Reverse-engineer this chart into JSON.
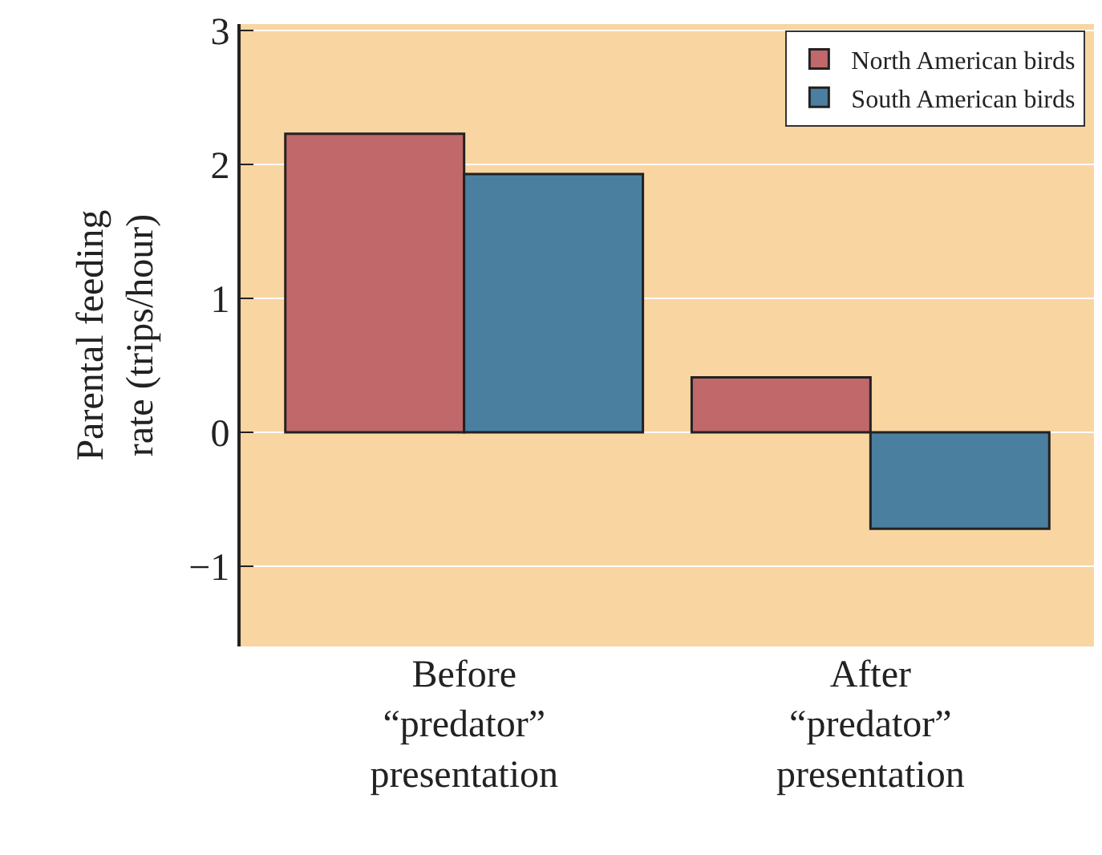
{
  "chart_data": {
    "type": "bar",
    "ylabel": "Parental feeding\nrate (trips/hour)",
    "categories": [
      "Before\n“predator”\npresentation",
      "After\n“predator”\npresentation"
    ],
    "series": [
      {
        "name": "North American birds",
        "color": "#c0686a",
        "values": [
          2.23,
          0.41
        ]
      },
      {
        "name": "South American birds",
        "color": "#4b7fa0",
        "values": [
          1.93,
          -0.72
        ]
      }
    ],
    "ylim": [
      -1.6,
      3.05
    ],
    "yticks": [
      {
        "value": -1,
        "label": "−1"
      },
      0,
      1,
      2,
      3
    ],
    "grid": "y",
    "legend": "top right"
  }
}
